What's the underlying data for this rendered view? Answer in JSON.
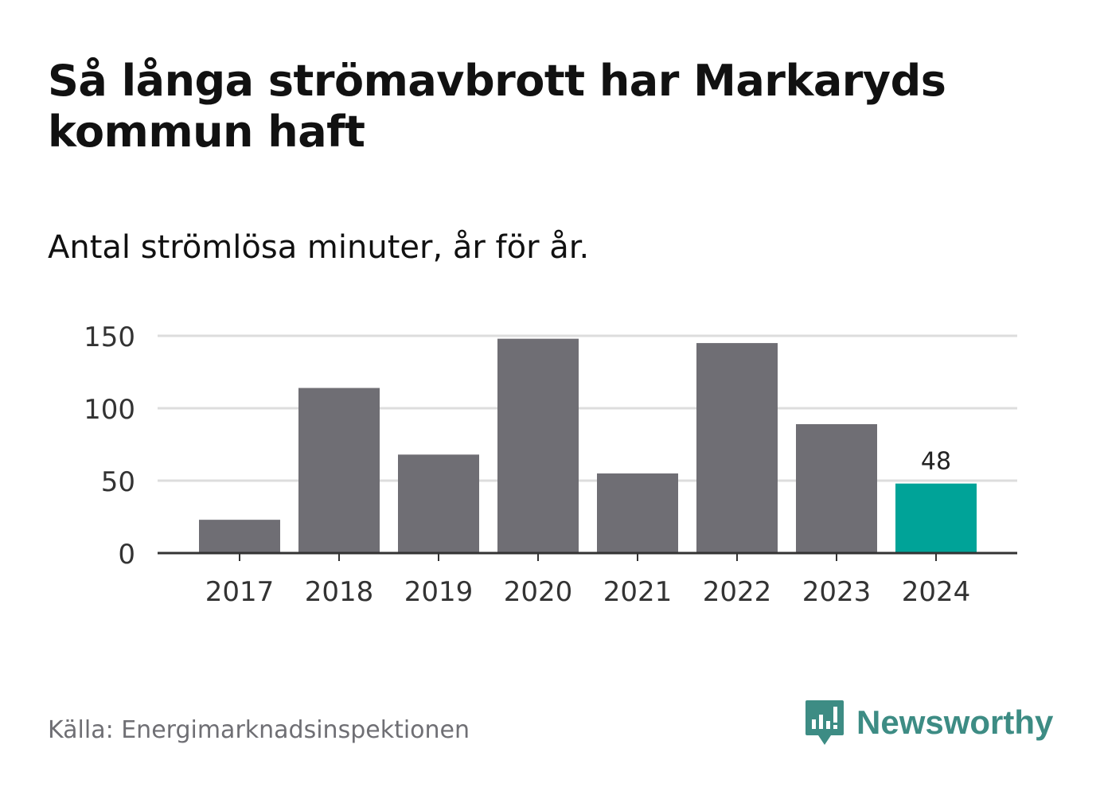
{
  "title": "Så långa strömavbrott har Markaryds kommun haft",
  "subtitle": "Antal strömlösa minuter, år för år.",
  "source": "Källa: Energimarknadsinspektionen",
  "brand": {
    "name": "Newsworthy",
    "color": "#3d8c84",
    "icon": "newsworthy-logo-icon"
  },
  "colors": {
    "bar": "#6f6e74",
    "highlight": "#00a398",
    "grid": "#dddddd",
    "axis": "#333333"
  },
  "chart_data": {
    "type": "bar",
    "title": "Så långa strömavbrott har Markaryds kommun haft",
    "subtitle": "Antal strömlösa minuter, år för år.",
    "xlabel": "",
    "ylabel": "",
    "categories": [
      "2017",
      "2018",
      "2019",
      "2020",
      "2021",
      "2022",
      "2023",
      "2024"
    ],
    "values": [
      23,
      114,
      68,
      148,
      55,
      145,
      89,
      48
    ],
    "yticks": [
      0,
      50,
      100,
      150
    ],
    "ylim": [
      0,
      150
    ],
    "grid": true,
    "highlight_index": 7,
    "data_labels": [
      {
        "index": 7,
        "text": "48"
      }
    ]
  }
}
